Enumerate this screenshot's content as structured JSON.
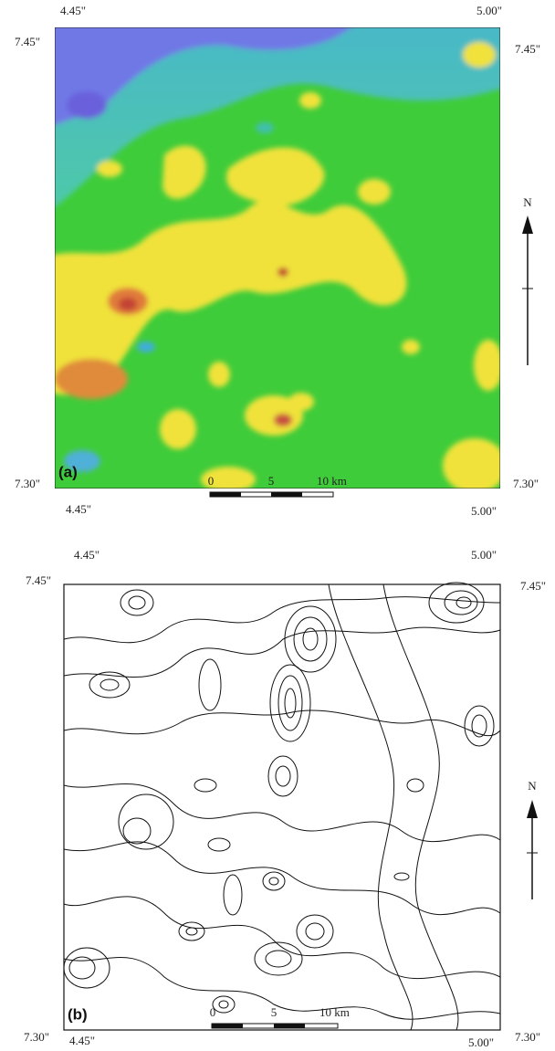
{
  "panels": [
    {
      "label": "(a)",
      "top_left": "4.45\"",
      "top_right": "5.00\"",
      "left_top": "7.45\"",
      "right_top": "7.45\"",
      "left_bottom": "7.30\"",
      "right_bottom": "7.30\"",
      "bottom_left": "4.45\"",
      "bottom_right": "5.00\"",
      "scale_labels": [
        "0",
        "5",
        "10 km"
      ],
      "north": "N"
    },
    {
      "label": "(b)",
      "top_left": "4.45\"",
      "top_right": "5.00\"",
      "left_top": "7.45\"",
      "right_top": "7.45\"",
      "left_bottom": "7.30\"",
      "right_bottom": "7.30\"",
      "bottom_left": "4.45\"",
      "bottom_right": "5.00\"",
      "scale_labels": [
        "0",
        "5",
        "10 km"
      ],
      "north": "N"
    }
  ]
}
